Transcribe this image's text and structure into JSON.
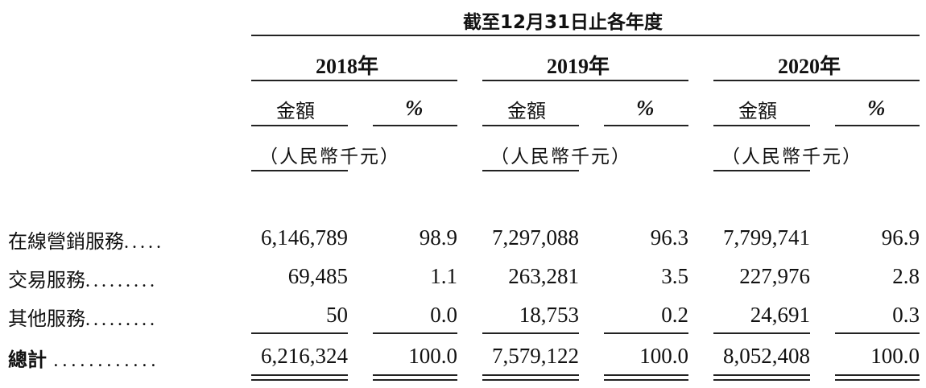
{
  "header": {
    "period_title": "截至12月31日止各年度",
    "years": [
      "2018年",
      "2019年",
      "2020年"
    ],
    "amount_label": "金額",
    "percent_label": "%",
    "unit_label": "（人民幣千元）"
  },
  "rows": [
    {
      "label": "在線營銷服務",
      "leader": ".....",
      "values": [
        "6,146,789",
        "98.9",
        "7,297,088",
        "96.3",
        "7,799,741",
        "96.9"
      ]
    },
    {
      "label": "交易服務",
      "leader": ".........",
      "values": [
        "69,485",
        "1.1",
        "263,281",
        "3.5",
        "227,976",
        "2.8"
      ]
    },
    {
      "label": "其他服務",
      "leader": ".........",
      "values": [
        "50",
        "0.0",
        "18,753",
        "0.2",
        "24,691",
        "0.3"
      ]
    }
  ],
  "total": {
    "label": "總計",
    "leader": "............",
    "values": [
      "6,216,324",
      "100.0",
      "7,579,122",
      "100.0",
      "8,052,408",
      "100.0"
    ]
  }
}
